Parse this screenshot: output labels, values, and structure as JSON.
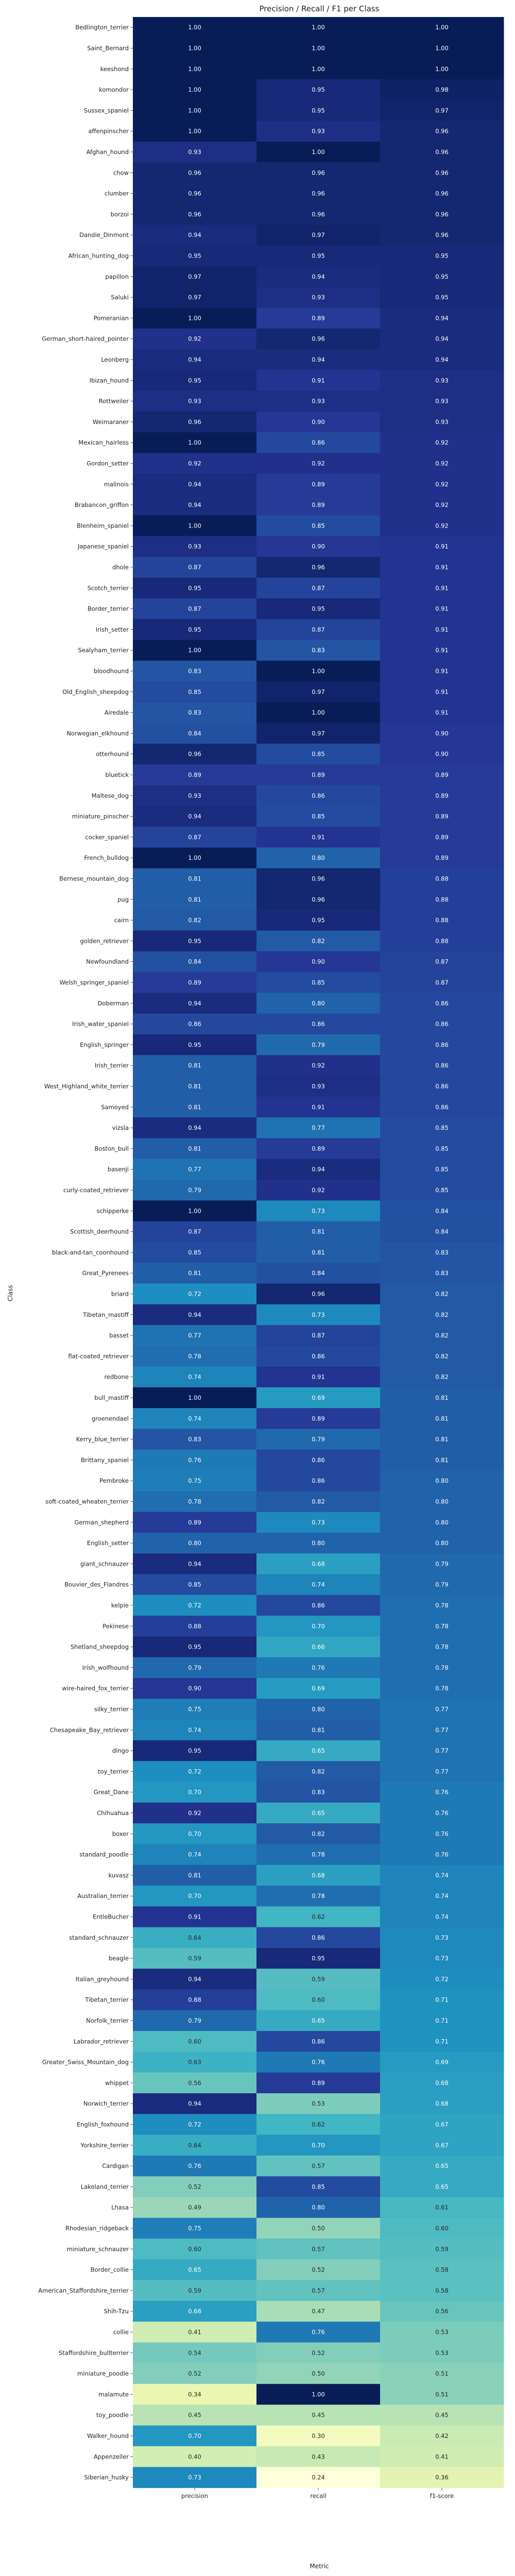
{
  "chart_data": {
    "type": "heatmap",
    "title": "Precision / Recall / F1 per Class",
    "xlabel": "Metric",
    "ylabel": "Class",
    "columns": [
      "precision",
      "recall",
      "f1-score"
    ],
    "value_range": [
      0.24,
      1.0
    ],
    "colormap": "YlGnBu",
    "rows": [
      {
        "label": "Bedlington_terrier",
        "values": [
          1.0,
          1.0,
          1.0
        ]
      },
      {
        "label": "Saint_Bernard",
        "values": [
          1.0,
          1.0,
          1.0
        ]
      },
      {
        "label": "keeshond",
        "values": [
          1.0,
          1.0,
          1.0
        ]
      },
      {
        "label": "komondor",
        "values": [
          1.0,
          0.95,
          0.98
        ]
      },
      {
        "label": "Sussex_spaniel",
        "values": [
          1.0,
          0.95,
          0.97
        ]
      },
      {
        "label": "affenpinscher",
        "values": [
          1.0,
          0.93,
          0.96
        ]
      },
      {
        "label": "Afghan_hound",
        "values": [
          0.93,
          1.0,
          0.96
        ]
      },
      {
        "label": "chow",
        "values": [
          0.96,
          0.96,
          0.96
        ]
      },
      {
        "label": "clumber",
        "values": [
          0.96,
          0.96,
          0.96
        ]
      },
      {
        "label": "borzoi",
        "values": [
          0.96,
          0.96,
          0.96
        ]
      },
      {
        "label": "Dandie_Dinmont",
        "values": [
          0.94,
          0.97,
          0.96
        ]
      },
      {
        "label": "African_hunting_dog",
        "values": [
          0.95,
          0.95,
          0.95
        ]
      },
      {
        "label": "papillon",
        "values": [
          0.97,
          0.94,
          0.95
        ]
      },
      {
        "label": "Saluki",
        "values": [
          0.97,
          0.93,
          0.95
        ]
      },
      {
        "label": "Pomeranian",
        "values": [
          1.0,
          0.89,
          0.94
        ]
      },
      {
        "label": "German_short-haired_pointer",
        "values": [
          0.92,
          0.96,
          0.94
        ]
      },
      {
        "label": "Leonberg",
        "values": [
          0.94,
          0.94,
          0.94
        ]
      },
      {
        "label": "Ibizan_hound",
        "values": [
          0.95,
          0.91,
          0.93
        ]
      },
      {
        "label": "Rottweiler",
        "values": [
          0.93,
          0.93,
          0.93
        ]
      },
      {
        "label": "Weimaraner",
        "values": [
          0.96,
          0.9,
          0.93
        ]
      },
      {
        "label": "Mexican_hairless",
        "values": [
          1.0,
          0.86,
          0.92
        ]
      },
      {
        "label": "Gordon_setter",
        "values": [
          0.92,
          0.92,
          0.92
        ]
      },
      {
        "label": "malinois",
        "values": [
          0.94,
          0.89,
          0.92
        ]
      },
      {
        "label": "Brabancon_griffon",
        "values": [
          0.94,
          0.89,
          0.92
        ]
      },
      {
        "label": "Blenheim_spaniel",
        "values": [
          1.0,
          0.85,
          0.92
        ]
      },
      {
        "label": "Japanese_spaniel",
        "values": [
          0.93,
          0.9,
          0.91
        ]
      },
      {
        "label": "dhole",
        "values": [
          0.87,
          0.96,
          0.91
        ]
      },
      {
        "label": "Scotch_terrier",
        "values": [
          0.95,
          0.87,
          0.91
        ]
      },
      {
        "label": "Border_terrier",
        "values": [
          0.87,
          0.95,
          0.91
        ]
      },
      {
        "label": "Irish_setter",
        "values": [
          0.95,
          0.87,
          0.91
        ]
      },
      {
        "label": "Sealyham_terrier",
        "values": [
          1.0,
          0.83,
          0.91
        ]
      },
      {
        "label": "bloodhound",
        "values": [
          0.83,
          1.0,
          0.91
        ]
      },
      {
        "label": "Old_English_sheepdog",
        "values": [
          0.85,
          0.97,
          0.91
        ]
      },
      {
        "label": "Airedale",
        "values": [
          0.83,
          1.0,
          0.91
        ]
      },
      {
        "label": "Norwegian_elkhound",
        "values": [
          0.84,
          0.97,
          0.9
        ]
      },
      {
        "label": "otterhound",
        "values": [
          0.96,
          0.85,
          0.9
        ]
      },
      {
        "label": "bluetick",
        "values": [
          0.89,
          0.89,
          0.89
        ]
      },
      {
        "label": "Maltese_dog",
        "values": [
          0.93,
          0.86,
          0.89
        ]
      },
      {
        "label": "miniature_pinscher",
        "values": [
          0.94,
          0.85,
          0.89
        ]
      },
      {
        "label": "cocker_spaniel",
        "values": [
          0.87,
          0.91,
          0.89
        ]
      },
      {
        "label": "French_bulldog",
        "values": [
          1.0,
          0.8,
          0.89
        ]
      },
      {
        "label": "Bernese_mountain_dog",
        "values": [
          0.81,
          0.96,
          0.88
        ]
      },
      {
        "label": "pug",
        "values": [
          0.81,
          0.96,
          0.88
        ]
      },
      {
        "label": "cairn",
        "values": [
          0.82,
          0.95,
          0.88
        ]
      },
      {
        "label": "golden_retriever",
        "values": [
          0.95,
          0.82,
          0.88
        ]
      },
      {
        "label": "Newfoundland",
        "values": [
          0.84,
          0.9,
          0.87
        ]
      },
      {
        "label": "Welsh_springer_spaniel",
        "values": [
          0.89,
          0.85,
          0.87
        ]
      },
      {
        "label": "Doberman",
        "values": [
          0.94,
          0.8,
          0.86
        ]
      },
      {
        "label": "Irish_water_spaniel",
        "values": [
          0.86,
          0.86,
          0.86
        ]
      },
      {
        "label": "English_springer",
        "values": [
          0.95,
          0.79,
          0.86
        ]
      },
      {
        "label": "Irish_terrier",
        "values": [
          0.81,
          0.92,
          0.86
        ]
      },
      {
        "label": "West_Highland_white_terrier",
        "values": [
          0.81,
          0.93,
          0.86
        ]
      },
      {
        "label": "Samoyed",
        "values": [
          0.81,
          0.91,
          0.86
        ]
      },
      {
        "label": "vizsla",
        "values": [
          0.94,
          0.77,
          0.85
        ]
      },
      {
        "label": "Boston_bull",
        "values": [
          0.81,
          0.89,
          0.85
        ]
      },
      {
        "label": "basenji",
        "values": [
          0.77,
          0.94,
          0.85
        ]
      },
      {
        "label": "curly-coated_retriever",
        "values": [
          0.79,
          0.92,
          0.85
        ]
      },
      {
        "label": "schipperke",
        "values": [
          1.0,
          0.73,
          0.84
        ]
      },
      {
        "label": "Scottish_deerhound",
        "values": [
          0.87,
          0.81,
          0.84
        ]
      },
      {
        "label": "black-and-tan_coonhound",
        "values": [
          0.85,
          0.81,
          0.83
        ]
      },
      {
        "label": "Great_Pyrenees",
        "values": [
          0.81,
          0.84,
          0.83
        ]
      },
      {
        "label": "briard",
        "values": [
          0.72,
          0.96,
          0.82
        ]
      },
      {
        "label": "Tibetan_mastiff",
        "values": [
          0.94,
          0.73,
          0.82
        ]
      },
      {
        "label": "basset",
        "values": [
          0.77,
          0.87,
          0.82
        ]
      },
      {
        "label": "flat-coated_retriever",
        "values": [
          0.78,
          0.86,
          0.82
        ]
      },
      {
        "label": "redbone",
        "values": [
          0.74,
          0.91,
          0.82
        ]
      },
      {
        "label": "bull_mastiff",
        "values": [
          1.0,
          0.69,
          0.81
        ]
      },
      {
        "label": "groenendael",
        "values": [
          0.74,
          0.89,
          0.81
        ]
      },
      {
        "label": "Kerry_blue_terrier",
        "values": [
          0.83,
          0.79,
          0.81
        ]
      },
      {
        "label": "Brittany_spaniel",
        "values": [
          0.76,
          0.86,
          0.81
        ]
      },
      {
        "label": "Pembroke",
        "values": [
          0.75,
          0.86,
          0.8
        ]
      },
      {
        "label": "soft-coated_wheaten_terrier",
        "values": [
          0.78,
          0.82,
          0.8
        ]
      },
      {
        "label": "German_shepherd",
        "values": [
          0.89,
          0.73,
          0.8
        ]
      },
      {
        "label": "English_setter",
        "values": [
          0.8,
          0.8,
          0.8
        ]
      },
      {
        "label": "giant_schnauzer",
        "values": [
          0.94,
          0.68,
          0.79
        ]
      },
      {
        "label": "Bouvier_des_Flandres",
        "values": [
          0.85,
          0.74,
          0.79
        ]
      },
      {
        "label": "kelpie",
        "values": [
          0.72,
          0.86,
          0.78
        ]
      },
      {
        "label": "Pekinese",
        "values": [
          0.88,
          0.7,
          0.78
        ]
      },
      {
        "label": "Shetland_sheepdog",
        "values": [
          0.95,
          0.66,
          0.78
        ]
      },
      {
        "label": "Irish_wolfhound",
        "values": [
          0.79,
          0.76,
          0.78
        ]
      },
      {
        "label": "wire-haired_fox_terrier",
        "values": [
          0.9,
          0.69,
          0.78
        ]
      },
      {
        "label": "silky_terrier",
        "values": [
          0.75,
          0.8,
          0.77
        ]
      },
      {
        "label": "Chesapeake_Bay_retriever",
        "values": [
          0.74,
          0.81,
          0.77
        ]
      },
      {
        "label": "dingo",
        "values": [
          0.95,
          0.65,
          0.77
        ]
      },
      {
        "label": "toy_terrier",
        "values": [
          0.72,
          0.82,
          0.77
        ]
      },
      {
        "label": "Great_Dane",
        "values": [
          0.7,
          0.83,
          0.76
        ]
      },
      {
        "label": "Chihuahua",
        "values": [
          0.92,
          0.65,
          0.76
        ]
      },
      {
        "label": "boxer",
        "values": [
          0.7,
          0.82,
          0.76
        ]
      },
      {
        "label": "standard_poodle",
        "values": [
          0.74,
          0.78,
          0.76
        ]
      },
      {
        "label": "kuvasz",
        "values": [
          0.81,
          0.68,
          0.74
        ]
      },
      {
        "label": "Australian_terrier",
        "values": [
          0.7,
          0.78,
          0.74
        ]
      },
      {
        "label": "EntleBucher",
        "values": [
          0.91,
          0.62,
          0.74
        ]
      },
      {
        "label": "standard_schnauzer",
        "values": [
          0.64,
          0.86,
          0.73
        ]
      },
      {
        "label": "beagle",
        "values": [
          0.59,
          0.95,
          0.73
        ]
      },
      {
        "label": "Italian_greyhound",
        "values": [
          0.94,
          0.59,
          0.72
        ]
      },
      {
        "label": "Tibetan_terrier",
        "values": [
          0.88,
          0.6,
          0.71
        ]
      },
      {
        "label": "Norfolk_terrier",
        "values": [
          0.79,
          0.65,
          0.71
        ]
      },
      {
        "label": "Labrador_retriever",
        "values": [
          0.6,
          0.86,
          0.71
        ]
      },
      {
        "label": "Greater_Swiss_Mountain_dog",
        "values": [
          0.63,
          0.76,
          0.69
        ]
      },
      {
        "label": "whippet",
        "values": [
          0.56,
          0.89,
          0.68
        ]
      },
      {
        "label": "Norwich_terrier",
        "values": [
          0.94,
          0.53,
          0.68
        ]
      },
      {
        "label": "English_foxhound",
        "values": [
          0.72,
          0.62,
          0.67
        ]
      },
      {
        "label": "Yorkshire_terrier",
        "values": [
          0.64,
          0.7,
          0.67
        ]
      },
      {
        "label": "Cardigan",
        "values": [
          0.76,
          0.57,
          0.65
        ]
      },
      {
        "label": "Lakeland_terrier",
        "values": [
          0.52,
          0.85,
          0.65
        ]
      },
      {
        "label": "Lhasa",
        "values": [
          0.49,
          0.8,
          0.61
        ]
      },
      {
        "label": "Rhodesian_ridgeback",
        "values": [
          0.75,
          0.5,
          0.6
        ]
      },
      {
        "label": "miniature_schnauzer",
        "values": [
          0.6,
          0.57,
          0.59
        ]
      },
      {
        "label": "Border_collie",
        "values": [
          0.65,
          0.52,
          0.58
        ]
      },
      {
        "label": "American_Staffordshire_terrier",
        "values": [
          0.59,
          0.57,
          0.58
        ]
      },
      {
        "label": "Shih-Tzu",
        "values": [
          0.68,
          0.47,
          0.56
        ]
      },
      {
        "label": "collie",
        "values": [
          0.41,
          0.76,
          0.53
        ]
      },
      {
        "label": "Staffordshire_bullterrier",
        "values": [
          0.54,
          0.52,
          0.53
        ]
      },
      {
        "label": "miniature_poodle",
        "values": [
          0.52,
          0.5,
          0.51
        ]
      },
      {
        "label": "malamute",
        "values": [
          0.34,
          1.0,
          0.51
        ]
      },
      {
        "label": "toy_poodle",
        "values": [
          0.45,
          0.45,
          0.45
        ]
      },
      {
        "label": "Walker_hound",
        "values": [
          0.7,
          0.3,
          0.42
        ]
      },
      {
        "label": "Appenzeller",
        "values": [
          0.4,
          0.43,
          0.41
        ]
      },
      {
        "label": "Siberian_husky",
        "values": [
          0.73,
          0.24,
          0.36
        ]
      }
    ]
  }
}
